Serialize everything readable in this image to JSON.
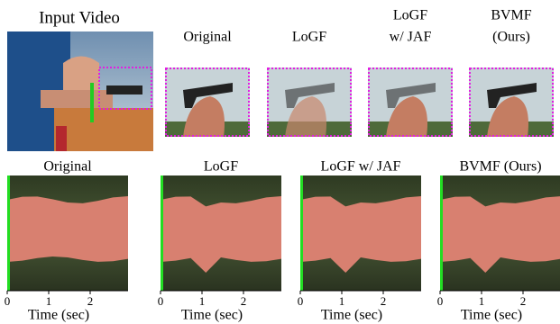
{
  "input_video": {
    "title": "Input Video"
  },
  "crops": [
    {
      "label_lines": [
        "Original"
      ]
    },
    {
      "label_lines": [
        "LoGF"
      ]
    },
    {
      "label_lines": [
        "LoGF",
        "w/ JAF"
      ]
    },
    {
      "label_lines": [
        "BVMF",
        "(Ours)"
      ]
    }
  ],
  "panels": [
    {
      "title": "Original",
      "xticks": [
        0,
        1,
        2
      ],
      "xlabel": "Time (sec)"
    },
    {
      "title": "LoGF",
      "xticks": [
        0,
        1,
        2
      ],
      "xlabel": "Time (sec)"
    },
    {
      "title": "LoGF w/ JAF",
      "xticks": [
        0,
        1,
        2
      ],
      "xlabel": "Time (sec)"
    },
    {
      "title": "BVMF (Ours)",
      "xticks": [
        0,
        1,
        2
      ],
      "xlabel": "Time (sec)"
    }
  ]
}
